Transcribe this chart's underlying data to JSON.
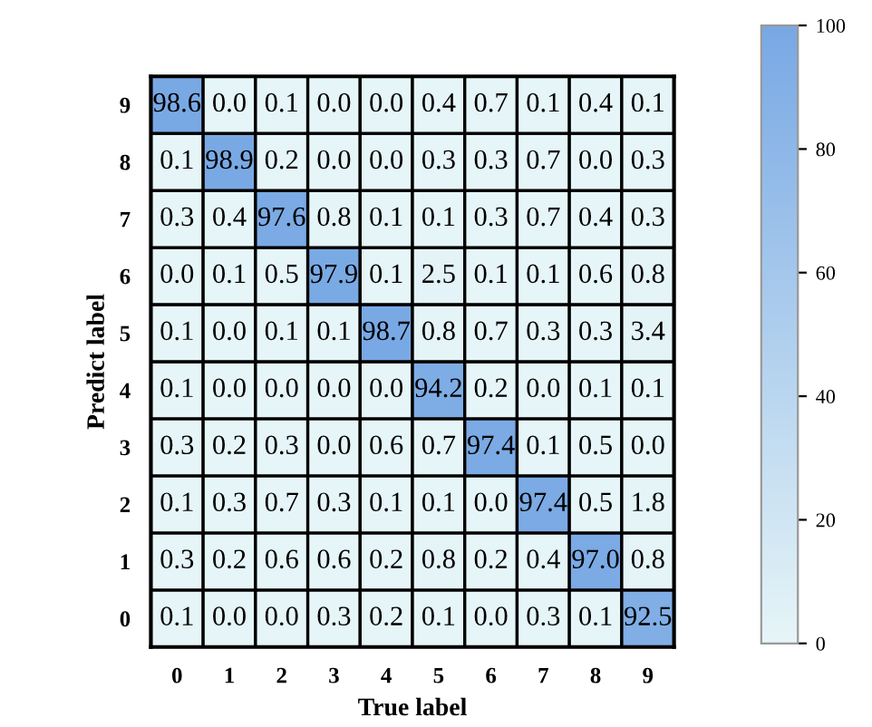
{
  "chart_data": {
    "type": "heatmap",
    "xlabel": "True label",
    "ylabel": "Predict label",
    "categories": [
      "0",
      "1",
      "2",
      "3",
      "4",
      "5",
      "6",
      "7",
      "8",
      "9"
    ],
    "y_categories": [
      "9",
      "8",
      "7",
      "6",
      "5",
      "4",
      "3",
      "2",
      "1",
      "0"
    ],
    "cells": [
      [
        98.6,
        0.0,
        0.1,
        0.0,
        0.0,
        0.4,
        0.7,
        0.1,
        0.4,
        0.1
      ],
      [
        0.1,
        98.9,
        0.2,
        0.0,
        0.0,
        0.3,
        0.3,
        0.7,
        0.0,
        0.3
      ],
      [
        0.3,
        0.4,
        97.6,
        0.8,
        0.1,
        0.1,
        0.3,
        0.7,
        0.4,
        0.3
      ],
      [
        0.0,
        0.1,
        0.5,
        97.9,
        0.1,
        2.5,
        0.1,
        0.1,
        0.6,
        0.8
      ],
      [
        0.1,
        0.0,
        0.1,
        0.1,
        98.7,
        0.8,
        0.7,
        0.3,
        0.3,
        3.4
      ],
      [
        0.1,
        0.0,
        0.0,
        0.0,
        0.0,
        94.2,
        0.2,
        0.0,
        0.1,
        0.1
      ],
      [
        0.3,
        0.2,
        0.3,
        0.0,
        0.6,
        0.7,
        97.4,
        0.1,
        0.5,
        0.0
      ],
      [
        0.1,
        0.3,
        0.7,
        0.3,
        0.1,
        0.1,
        0.0,
        97.4,
        0.5,
        1.8
      ],
      [
        0.3,
        0.2,
        0.6,
        0.6,
        0.2,
        0.8,
        0.2,
        0.4,
        97.0,
        0.8
      ],
      [
        0.1,
        0.0,
        0.0,
        0.3,
        0.2,
        0.1,
        0.0,
        0.3,
        0.1,
        92.5
      ]
    ],
    "cell_labels": [
      [
        "98.6",
        "0.0",
        "0.1",
        "0.0",
        "0.0",
        "0.4",
        "0.7",
        "0.1",
        "0.4",
        "0.1"
      ],
      [
        "0.1",
        "98.9",
        "0.2",
        "0.0",
        "0.0",
        "0.3",
        "0.3",
        "0.7",
        "0.0",
        "0.3"
      ],
      [
        "0.3",
        "0.4",
        "97.6",
        "0.8",
        "0.1",
        "0.1",
        "0.3",
        "0.7",
        "0.4",
        "0.3"
      ],
      [
        "0.0",
        "0.1",
        "0.5",
        "97.9",
        "0.1",
        "2.5",
        "0.1",
        "0.1",
        "0.6",
        "0.8"
      ],
      [
        "0.1",
        "0.0",
        "0.1",
        "0.1",
        "98.7",
        "0.8",
        "0.7",
        "0.3",
        "0.3",
        "3.4"
      ],
      [
        "0.1",
        "0.0",
        "0.0",
        "0.0",
        "0.0",
        "94.2",
        "0.2",
        "0.0",
        "0.1",
        "0.1"
      ],
      [
        "0.3",
        "0.2",
        "0.3",
        "0.0",
        "0.6",
        "0.7",
        "97.4",
        "0.1",
        "0.5",
        "0.0"
      ],
      [
        "0.1",
        "0.3",
        "0.7",
        "0.3",
        "0.1",
        "0.1",
        "0.0",
        "97.4",
        "0.5",
        "1.8"
      ],
      [
        "0.3",
        "0.2",
        "0.6",
        "0.6",
        "0.2",
        "0.8",
        "0.2",
        "0.4",
        "97.0",
        "0.8"
      ],
      [
        "0.1",
        "0.0",
        "0.0",
        "0.3",
        "0.2",
        "0.1",
        "0.0",
        "0.3",
        "0.1",
        "92.5"
      ]
    ],
    "colors": [
      "#e6f5f7",
      "#78a8e4"
    ],
    "clim": [
      0,
      100
    ],
    "cticks": [
      0,
      20,
      40,
      60,
      80,
      100
    ]
  }
}
